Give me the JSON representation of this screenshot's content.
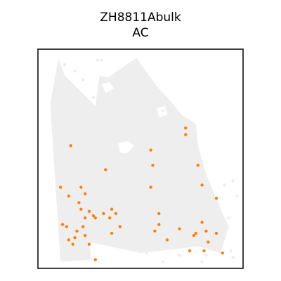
{
  "chart_data": {
    "type": "scatter",
    "title": "ZH8811Abulk",
    "subtitle": "AC",
    "xlabel": "",
    "ylabel": "",
    "axis_ticks": false,
    "grid": false,
    "legend": "none",
    "xlim": [
      0,
      100
    ],
    "ylim": [
      0,
      100
    ],
    "background_color": "#eeeeee",
    "highlight_color": "#ff7f0e",
    "tissue_outline": [
      [
        11,
        3
      ],
      [
        26,
        4
      ],
      [
        25,
        12
      ],
      [
        50,
        7
      ],
      [
        78,
        10
      ],
      [
        89,
        7
      ],
      [
        93,
        19
      ],
      [
        89,
        27
      ],
      [
        82,
        43
      ],
      [
        78,
        56
      ],
      [
        77,
        66
      ],
      [
        70,
        70
      ],
      [
        65,
        76
      ],
      [
        58,
        83
      ],
      [
        48,
        96
      ],
      [
        34,
        87
      ],
      [
        30,
        88
      ],
      [
        28,
        74
      ],
      [
        13,
        88
      ],
      [
        10,
        96
      ],
      [
        6,
        75
      ]
    ],
    "series": [
      {
        "name": "",
        "points": [
          [
            28,
            41
          ],
          [
            30,
            41
          ],
          [
            32,
            43
          ],
          [
            34,
            46
          ],
          [
            35,
            47
          ],
          [
            36,
            46
          ],
          [
            38,
            44
          ],
          [
            39,
            49
          ],
          [
            40,
            51
          ],
          [
            41,
            52
          ],
          [
            41,
            50
          ],
          [
            44,
            41
          ],
          [
            46,
            44
          ],
          [
            49,
            47
          ],
          [
            48,
            49
          ],
          [
            47,
            51
          ],
          [
            45,
            52
          ],
          [
            43,
            52
          ],
          [
            42,
            51
          ],
          [
            43,
            36
          ],
          [
            23,
            40
          ],
          [
            27,
            33
          ],
          [
            10,
            43
          ],
          [
            13,
            38
          ],
          [
            17,
            37
          ],
          [
            21,
            52
          ],
          [
            24,
            49
          ],
          [
            28,
            65
          ],
          [
            10,
            62
          ],
          [
            12,
            58
          ],
          [
            16,
            55
          ],
          [
            18,
            66
          ],
          [
            66,
            52
          ],
          [
            68,
            46
          ],
          [
            70,
            42
          ],
          [
            62,
            46
          ],
          [
            59,
            47
          ],
          [
            65,
            36
          ],
          [
            73,
            44
          ],
          [
            76,
            39
          ],
          [
            81,
            41
          ],
          [
            84,
            34
          ],
          [
            88,
            29
          ],
          [
            89,
            16
          ],
          [
            93,
            23
          ],
          [
            95,
            40
          ],
          [
            97,
            33
          ],
          [
            91,
            38
          ],
          [
            87,
            31
          ],
          [
            86,
            24
          ],
          [
            90,
            14
          ],
          [
            94,
            8
          ],
          [
            95,
            5
          ],
          [
            82,
            6
          ],
          [
            80,
            3
          ],
          [
            69,
            6
          ],
          [
            61,
            3
          ],
          [
            53,
            7
          ],
          [
            46,
            9
          ],
          [
            29,
            95
          ],
          [
            31,
            95
          ],
          [
            37,
            70
          ],
          [
            36,
            67
          ],
          [
            34,
            64
          ],
          [
            41,
            61
          ],
          [
            45,
            59
          ],
          [
            48,
            61
          ],
          [
            51,
            65
          ],
          [
            55,
            62
          ],
          [
            58,
            58
          ],
          [
            60,
            53
          ],
          [
            56,
            50
          ],
          [
            53,
            47
          ],
          [
            51,
            52
          ],
          [
            49,
            55
          ],
          [
            47,
            57
          ],
          [
            46,
            60
          ],
          [
            44,
            64
          ],
          [
            43,
            68
          ],
          [
            45,
            73
          ],
          [
            48,
            76
          ],
          [
            52,
            77
          ],
          [
            55,
            79
          ],
          [
            58,
            75
          ],
          [
            61,
            72
          ],
          [
            64,
            70
          ],
          [
            66,
            66
          ],
          [
            68,
            62
          ],
          [
            64,
            58
          ],
          [
            24,
            70
          ],
          [
            27,
            78
          ],
          [
            22,
            86
          ],
          [
            18,
            90
          ],
          [
            13,
            93
          ]
        ],
        "highlight": [
          [
            72,
            64
          ],
          [
            72,
            61
          ],
          [
            16,
            56
          ],
          [
            33,
            45
          ],
          [
            55,
            54
          ],
          [
            11,
            37
          ],
          [
            21,
            37
          ],
          [
            20,
            30
          ],
          [
            23,
            34
          ],
          [
            21,
            27
          ],
          [
            22,
            19
          ],
          [
            15,
            33
          ],
          [
            23,
            15
          ],
          [
            28,
            23
          ],
          [
            35,
            23
          ],
          [
            38,
            25
          ],
          [
            36,
            27
          ],
          [
            27,
            24
          ],
          [
            25,
            26
          ],
          [
            23,
            23
          ],
          [
            32,
            25
          ],
          [
            36,
            16
          ],
          [
            40,
            19
          ],
          [
            28,
            4
          ],
          [
            59,
            25
          ],
          [
            59,
            20
          ],
          [
            57,
            17
          ],
          [
            69,
            18
          ],
          [
            76,
            15
          ],
          [
            80,
            21
          ],
          [
            77,
            16
          ],
          [
            82,
            17
          ],
          [
            87,
            16
          ],
          [
            83,
            12
          ],
          [
            81,
            8
          ],
          [
            90,
            7
          ],
          [
            74,
            8
          ],
          [
            63,
            13
          ],
          [
            80,
            38
          ],
          [
            87,
            32
          ],
          [
            78,
            47
          ],
          [
            55,
            37
          ],
          [
            56,
            47
          ],
          [
            18,
            14
          ],
          [
            25,
            11
          ],
          [
            14,
            19
          ],
          [
            12,
            20
          ],
          [
            15,
            13
          ],
          [
            17,
            11
          ],
          [
            19,
            17
          ]
        ]
      }
    ]
  }
}
